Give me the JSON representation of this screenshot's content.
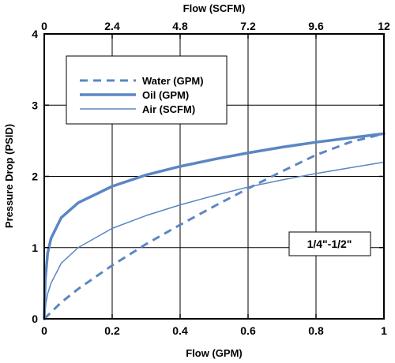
{
  "chart_data": {
    "type": "line",
    "xlabel": "Flow (GPM)",
    "x2label": "Flow (SCFM)",
    "ylabel": "Pressure Drop (PSID)",
    "xlim": [
      0,
      1
    ],
    "x2lim": [
      0,
      12
    ],
    "ylim": [
      0,
      4
    ],
    "xticks": [
      "0",
      "0.2",
      "0.4",
      "0.6",
      "0.8",
      "1"
    ],
    "x2ticks": [
      "0",
      "2.4",
      "4.8",
      "7.2",
      "9.6",
      "12"
    ],
    "yticks": [
      "0",
      "1",
      "2",
      "3",
      "4"
    ],
    "grid": true,
    "legend_position": "top-left",
    "annotation": "1/4\"-1/2\"",
    "series_color": "#5b86c4",
    "series": [
      {
        "name": "Water (GPM)",
        "style": "dashed",
        "x": [
          0,
          0.05,
          0.1,
          0.2,
          0.3,
          0.4,
          0.5,
          0.6,
          0.7,
          0.8,
          0.9,
          1.0
        ],
        "y": [
          0,
          0.23,
          0.42,
          0.75,
          1.05,
          1.32,
          1.58,
          1.83,
          2.07,
          2.3,
          2.48,
          2.6
        ]
      },
      {
        "name": "Oil (GPM)",
        "style": "thick",
        "x": [
          0,
          0.003,
          0.01,
          0.02,
          0.05,
          0.1,
          0.2,
          0.3,
          0.4,
          0.5,
          0.6,
          0.7,
          0.8,
          0.9,
          1.0
        ],
        "y": [
          0,
          0.55,
          0.92,
          1.13,
          1.42,
          1.63,
          1.86,
          2.02,
          2.14,
          2.24,
          2.33,
          2.41,
          2.48,
          2.54,
          2.6
        ]
      },
      {
        "name": "Air (SCFM)",
        "style": "thin",
        "x": [
          0,
          0.005,
          0.01,
          0.02,
          0.05,
          0.1,
          0.2,
          0.3,
          0.4,
          0.5,
          0.6,
          0.7,
          0.8,
          0.9,
          1.0
        ],
        "y": [
          0,
          0.22,
          0.35,
          0.5,
          0.78,
          1.0,
          1.27,
          1.45,
          1.6,
          1.73,
          1.85,
          1.95,
          2.04,
          2.12,
          2.2
        ]
      }
    ]
  }
}
